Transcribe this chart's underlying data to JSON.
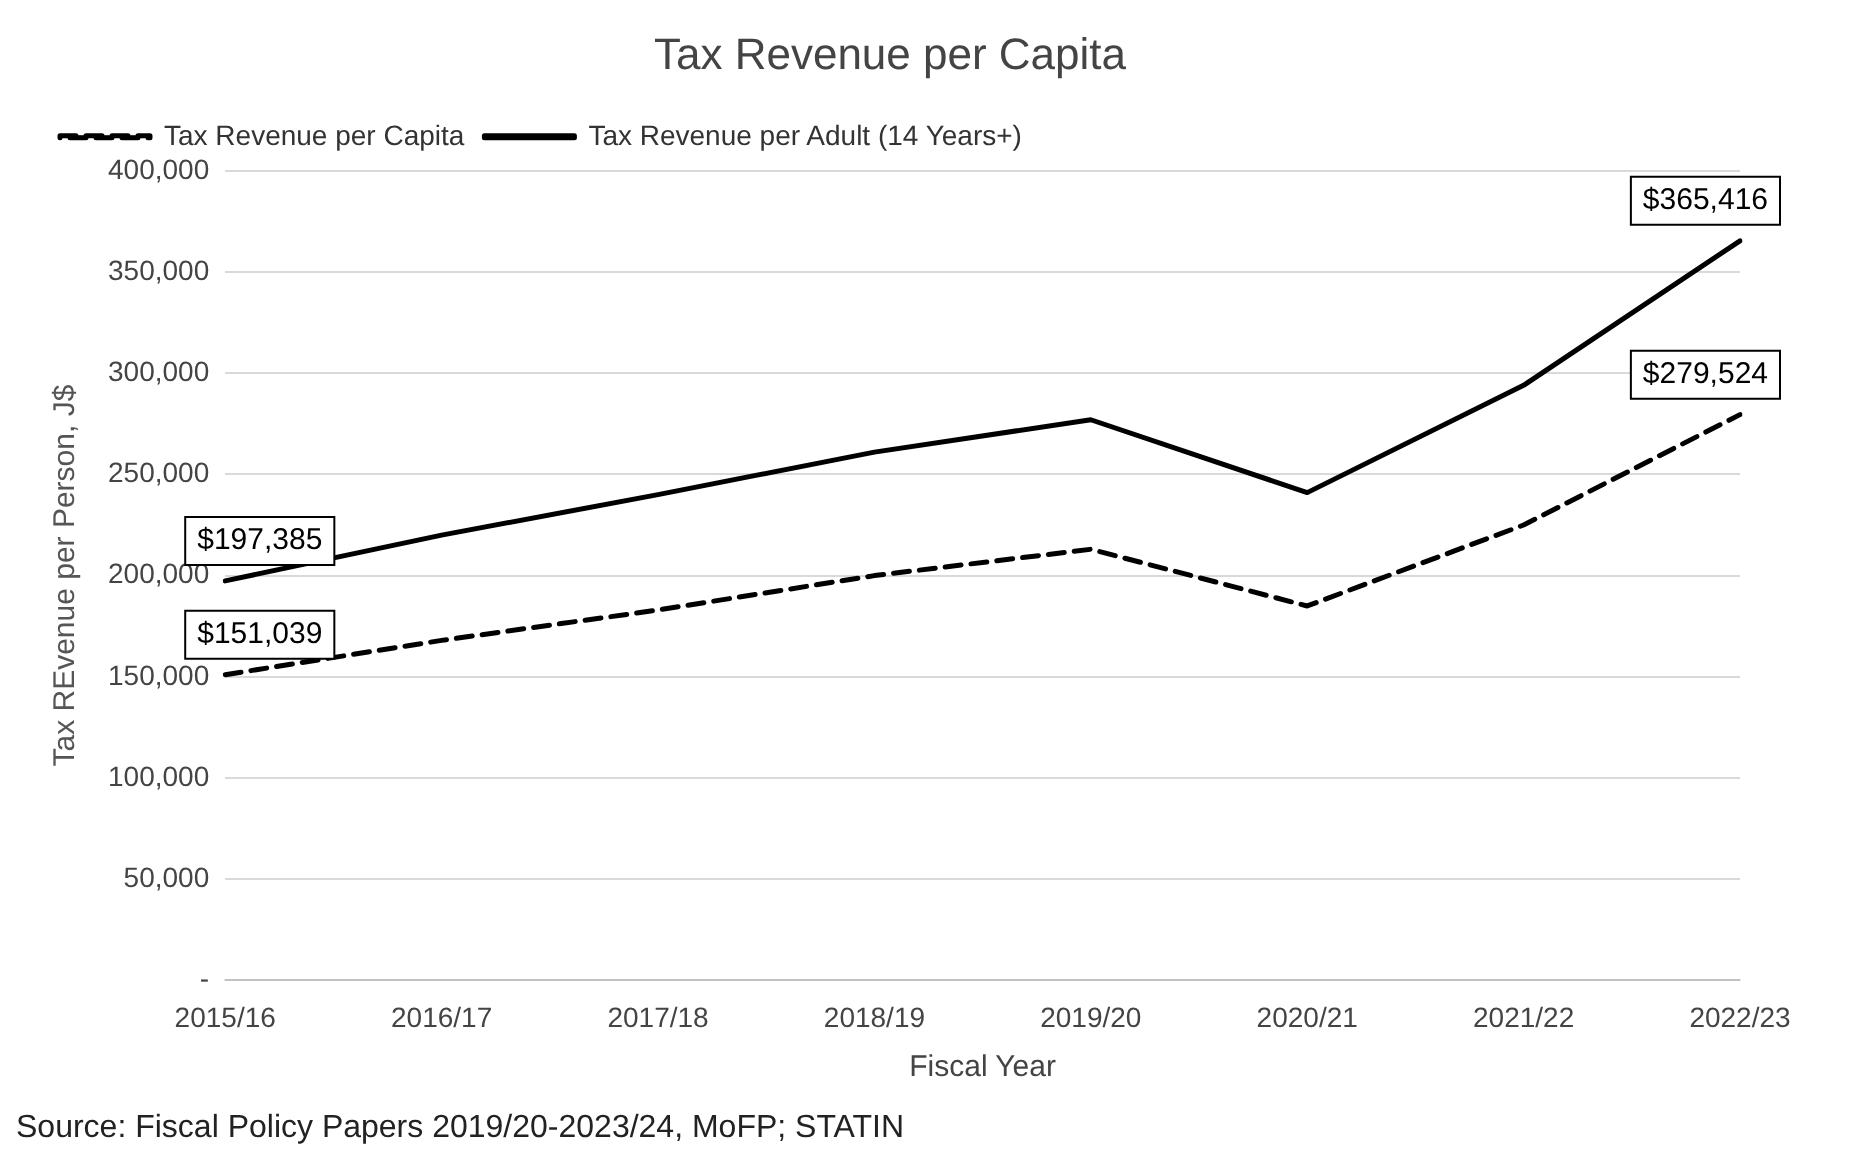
{
  "chart_data": {
    "type": "line",
    "title": "Tax Revenue per Capita",
    "xlabel": "Fiscal Year",
    "ylabel": "Tax REvenue per Person, J$",
    "categories": [
      "2015/16",
      "2016/17",
      "2017/18",
      "2018/19",
      "2019/20",
      "2020/21",
      "2021/22",
      "2022/23"
    ],
    "series": [
      {
        "name": "Tax Revenue per Capita",
        "color": "#000000",
        "line_style": "dashed",
        "values": [
          151039,
          168000,
          183000,
          200000,
          213000,
          185000,
          225000,
          279524
        ],
        "value_labels": [
          "$151,039",
          null,
          null,
          null,
          null,
          null,
          null,
          "$279,524"
        ]
      },
      {
        "name": "Tax Revenue per Adult (14 Years+)",
        "color": "#000000",
        "line_style": "solid",
        "values": [
          197385,
          220000,
          240000,
          261000,
          277000,
          241000,
          294000,
          365416
        ],
        "value_labels": [
          "$197,385",
          null,
          null,
          null,
          null,
          null,
          null,
          "$365,416"
        ]
      }
    ],
    "ylim": [
      0,
      400000
    ],
    "yticks": [
      {
        "value": 0,
        "label": "-"
      },
      {
        "value": 50000,
        "label": "50,000"
      },
      {
        "value": 100000,
        "label": "100,000"
      },
      {
        "value": 150000,
        "label": "150,000"
      },
      {
        "value": 200000,
        "label": "200,000"
      },
      {
        "value": 250000,
        "label": "250,000"
      },
      {
        "value": 300000,
        "label": "300,000"
      },
      {
        "value": 350000,
        "label": "350,000"
      },
      {
        "value": 400000,
        "label": "400,000"
      }
    ],
    "grid": "y",
    "legend": "top left",
    "marker": "none",
    "annotations": [
      "Source: Fiscal Policy Papers 2019/20-2023/24, MoFP; STATIN"
    ]
  }
}
